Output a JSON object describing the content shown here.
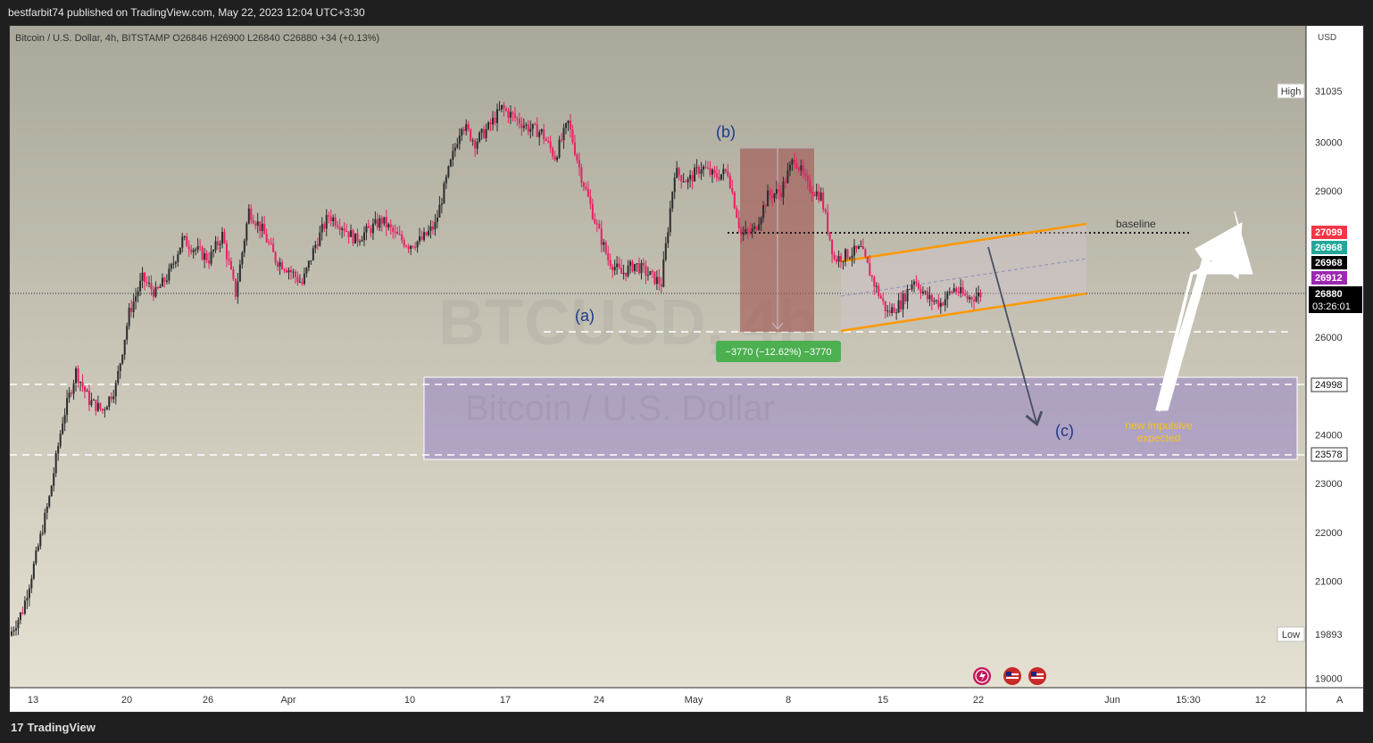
{
  "header": {
    "published": "bestfarbit74 published on TradingView.com, May 22, 2023 12:04 UTC+3:30"
  },
  "footer": {
    "logo_text": "TradingView",
    "logo_mark": "17"
  },
  "chart_data": {
    "type": "candlestick",
    "symbol_line": "Bitcoin / U.S. Dollar, 4h, BITSTAMP  O26846  H26900  L26840  C26880  +34 (+0.13%)",
    "currency": "USD",
    "watermark_ticker": "BTCUSD, 4h",
    "watermark_name": "Bitcoin / U.S. Dollar",
    "y_ticks": [
      19000,
      21000,
      22000,
      23000,
      24000,
      26000,
      29000,
      30000
    ],
    "y_tick_labels": [
      "19000",
      "21000",
      "22000",
      "23000",
      "24000",
      "26000",
      "29000",
      "30000"
    ],
    "x_tick_labels": [
      "13",
      "20",
      "26",
      "Apr",
      "10",
      "17",
      "24",
      "May",
      "8",
      "15",
      "22",
      "Jun",
      "15:30",
      "12"
    ],
    "x_axis_corner": "A",
    "high": {
      "label": "High",
      "value": "31035"
    },
    "low": {
      "label": "Low",
      "value": "19893"
    },
    "price_tags": [
      {
        "value": "27099",
        "color": "#f23645"
      },
      {
        "value": "26968",
        "color": "#26a69a"
      },
      {
        "value": "26968",
        "color": "#000000"
      },
      {
        "value": "26912",
        "color": "#9c27b0"
      }
    ],
    "last_price": "26880",
    "countdown": "03:26:01",
    "zone_levels": [
      "24998",
      "23578"
    ],
    "annotations": {
      "a": "(a)",
      "b": "(b)",
      "c": "(c)",
      "baseline": "baseline",
      "measure": "−3770 (−12.62%) −3770",
      "impulse_line1": "new impulsive",
      "impulse_line2": "expected"
    },
    "close_path": [
      [
        "13",
        19880
      ],
      [
        "",
        20400
      ],
      [
        "",
        21500
      ],
      [
        "",
        22700
      ],
      [
        "",
        24300
      ],
      [
        "",
        25300
      ],
      [
        "",
        24700
      ],
      [
        "",
        24500
      ],
      [
        "",
        25000
      ],
      [
        "",
        26500
      ],
      [
        "",
        27200
      ],
      [
        "",
        26900
      ],
      [
        "20",
        27300
      ],
      [
        "",
        28000
      ],
      [
        "",
        27800
      ],
      [
        "",
        27600
      ],
      [
        "",
        28100
      ],
      [
        "",
        26900
      ],
      [
        "26",
        28600
      ],
      [
        "",
        28200
      ],
      [
        "",
        27600
      ],
      [
        "",
        27400
      ],
      [
        "",
        27100
      ],
      [
        "",
        27900
      ],
      [
        "",
        28500
      ],
      [
        "",
        28300
      ],
      [
        "Apr",
        28000
      ],
      [
        "",
        28200
      ],
      [
        "",
        28400
      ],
      [
        "",
        28100
      ],
      [
        "",
        27900
      ],
      [
        "",
        28000
      ],
      [
        "10",
        28300
      ],
      [
        "",
        29400
      ],
      [
        "",
        30400
      ],
      [
        "",
        30000
      ],
      [
        "",
        30300
      ],
      [
        "",
        30700
      ],
      [
        "",
        30500
      ],
      [
        "17",
        30300
      ],
      [
        "",
        30200
      ],
      [
        "",
        29700
      ],
      [
        "",
        30400
      ],
      [
        "",
        29300
      ],
      [
        "",
        28400
      ],
      [
        "",
        27600
      ],
      [
        "",
        27300
      ],
      [
        "24",
        27500
      ],
      [
        "",
        27300
      ],
      [
        "",
        27100
      ],
      [
        "",
        29400
      ],
      [
        "",
        29200
      ],
      [
        "",
        29500
      ],
      [
        "",
        29300
      ],
      [
        "May",
        29400
      ],
      [
        "",
        28100
      ],
      [
        "",
        28200
      ],
      [
        "",
        28900
      ],
      [
        "",
        29000
      ],
      [
        "",
        29700
      ],
      [
        "8",
        29100
      ],
      [
        "",
        28900
      ],
      [
        "",
        27600
      ],
      [
        "",
        27700
      ],
      [
        "",
        27800
      ],
      [
        "",
        27100
      ],
      [
        "",
        26500
      ],
      [
        "15",
        26700
      ],
      [
        "",
        27200
      ],
      [
        "",
        26800
      ],
      [
        "",
        26700
      ],
      [
        "",
        27000
      ],
      [
        "",
        26800
      ],
      [
        "22",
        26880
      ]
    ]
  }
}
